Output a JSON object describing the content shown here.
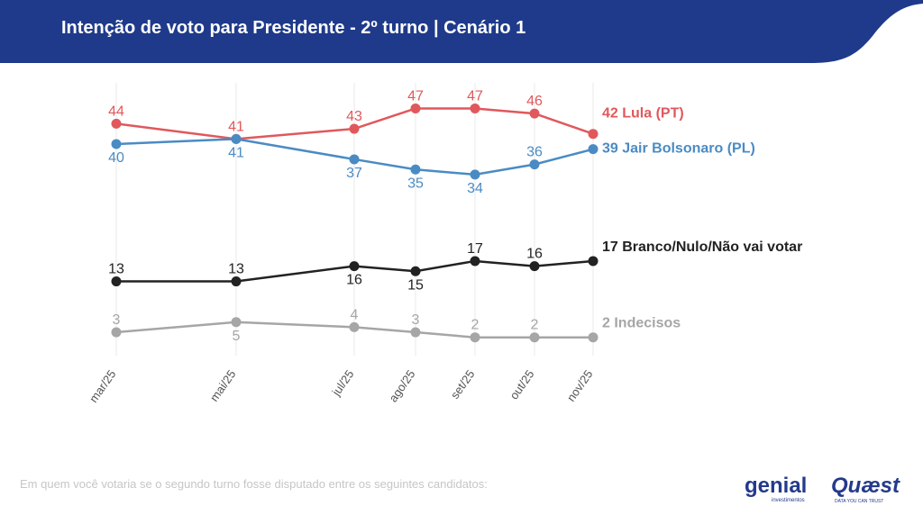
{
  "header": {
    "title": "Intenção de voto para Presidente - 2º turno | Cenário 1"
  },
  "footnote": "Em quem você votaria se o segundo turno fosse disputado entre os seguintes candidatos:",
  "logos": {
    "genial": "genial",
    "genial_sub": "investimentos",
    "quaest": "Quæst",
    "quaest_sub": "DATA YOU CAN TRUST"
  },
  "colors": {
    "header_bg": "#1f3a8a",
    "lula": "#e0585c",
    "bolsonaro": "#4a8bc4",
    "branco": "#222222",
    "indecisos": "#a6a6a6",
    "grid": "#e8e8e8"
  },
  "chart_data": {
    "type": "line",
    "title": "Intenção de voto para Presidente - 2º turno | Cenário 1",
    "x": [
      "mar/25",
      "mai/25",
      "jul/25",
      "ago/25",
      "set/25",
      "out/25",
      "nov/25"
    ],
    "ylim": [
      0,
      50
    ],
    "grid": "vertical",
    "legend": "end-of-line labels",
    "series": [
      {
        "name": "Lula (PT)",
        "end_label": "42 Lula (PT)",
        "color": "#e0585c",
        "label_pos": "above",
        "values": [
          44,
          41,
          43,
          47,
          47,
          46,
          42
        ],
        "labels": [
          "44",
          "41",
          "43",
          "47",
          "47",
          "46",
          ""
        ]
      },
      {
        "name": "Jair Bolsonaro (PL)",
        "end_label": "39 Jair Bolsonaro (PL)",
        "color": "#4a8bc4",
        "label_pos": "below",
        "values": [
          40,
          41,
          37,
          35,
          34,
          36,
          39
        ],
        "labels": [
          "40",
          "41",
          "37",
          "35",
          "34",
          "36",
          ""
        ]
      },
      {
        "name": "Branco/Nulo/Não vai votar",
        "end_label": "17 Branco/Nulo/Não vai votar",
        "color": "#222222",
        "label_pos": "mixed",
        "values": [
          13,
          13,
          16,
          15,
          17,
          16,
          17
        ],
        "labels": [
          "13",
          "13",
          "16",
          "15",
          "17",
          "16",
          ""
        ]
      },
      {
        "name": "Indecisos",
        "end_label": "2 Indecisos",
        "color": "#a6a6a6",
        "label_pos": "mixed",
        "values": [
          3,
          5,
          4,
          3,
          2,
          2,
          2
        ],
        "labels": [
          "3",
          "5",
          "4",
          "3",
          "2",
          "2",
          ""
        ]
      }
    ]
  }
}
